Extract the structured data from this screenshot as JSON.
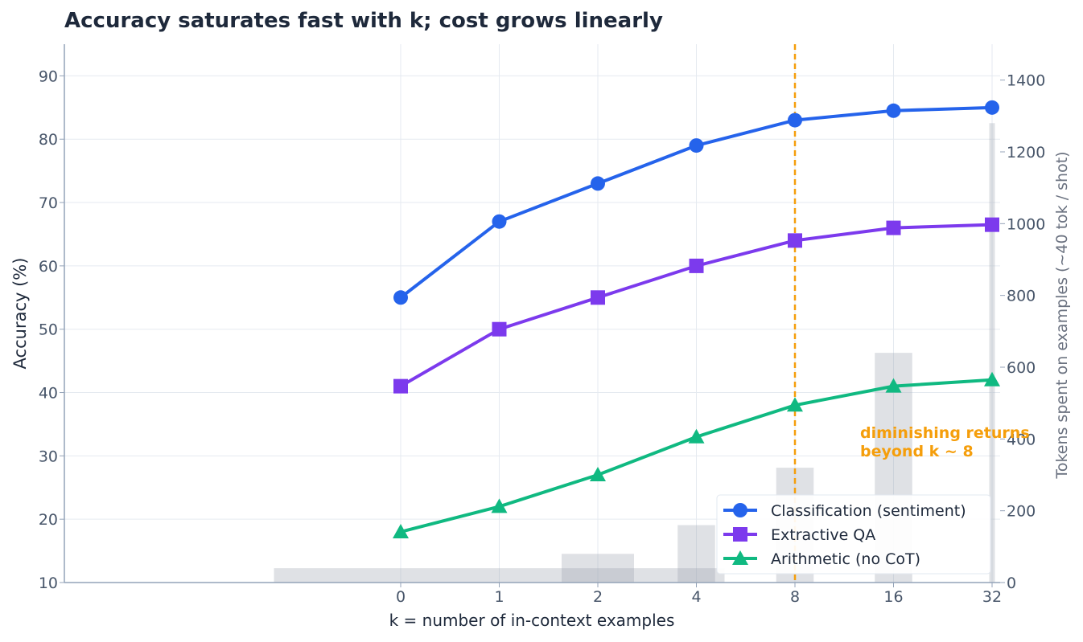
{
  "chart_data": {
    "type": "line",
    "title": "Accuracy saturates fast with k; cost grows linearly",
    "xlabel": "k = number of in-context examples",
    "ylabel": "Accuracy (%)",
    "y2label": "Tokens spent on examples (~40 tok / shot)",
    "x_categories": [
      "0",
      "1",
      "2",
      "4",
      "8",
      "16",
      "32"
    ],
    "x": [
      0,
      1,
      2,
      4,
      8,
      16,
      32
    ],
    "x_scale": "symlog",
    "ylim": [
      10,
      95
    ],
    "yticks": [
      10,
      20,
      30,
      40,
      50,
      60,
      70,
      80,
      90
    ],
    "y2lim": [
      0,
      1500
    ],
    "y2ticks": [
      0,
      200,
      400,
      600,
      800,
      1000,
      1200,
      1400
    ],
    "grid": true,
    "legend_position": "lower-right",
    "series": [
      {
        "name": "Classification (sentiment)",
        "marker": "circle",
        "color": "#2563eb",
        "values": [
          55,
          67,
          73,
          79,
          83,
          84.5,
          85
        ]
      },
      {
        "name": "Extractive QA",
        "marker": "square",
        "color": "#7c3aed",
        "values": [
          41,
          50,
          55,
          60,
          64,
          66,
          66.5
        ]
      },
      {
        "name": "Arithmetic (no CoT)",
        "marker": "triangle",
        "color": "#10b981",
        "values": [
          18,
          22,
          27,
          33,
          38,
          41,
          42
        ]
      }
    ],
    "token_bars": {
      "color": "#9ca3af",
      "values": [
        0,
        40,
        80,
        160,
        320,
        640,
        1280
      ]
    },
    "annotation": {
      "lines": [
        "diminishing returns",
        "beyond k ~ 8"
      ],
      "x": 8,
      "color": "#f59e0b"
    }
  }
}
